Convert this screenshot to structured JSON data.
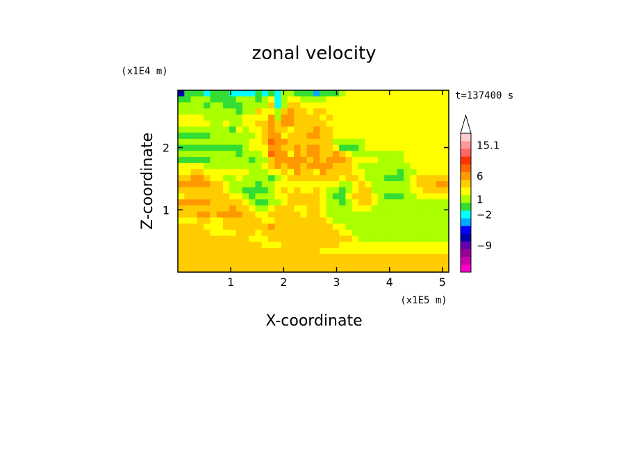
{
  "chart_data": {
    "type": "heatmap",
    "title": "zonal velocity",
    "xlabel": "X-coordinate",
    "ylabel": "Z-coordinate",
    "x_scale_label": "(x1E5 m)",
    "y_scale_label": "(x1E4 m)",
    "time_label": "t=137400 s",
    "x_ticks": [
      "1",
      "2",
      "3",
      "4",
      "5"
    ],
    "y_ticks": [
      "1",
      "2"
    ],
    "xlim": [
      0,
      5.12
    ],
    "ylim": [
      0,
      2.92
    ],
    "colorbar": {
      "tick_labels": [
        "15.1",
        "6",
        "1",
        "−2",
        "−9"
      ],
      "colors": [
        "#ff00cc",
        "#cc00aa",
        "#990099",
        "#6600aa",
        "#0000aa",
        "#0000ff",
        "#00aaff",
        "#00ffff",
        "#33dd33",
        "#aaff00",
        "#ffff00",
        "#ffcc00",
        "#ff9900",
        "#ff6600",
        "#ff3300",
        "#ff6666",
        "#ff9999",
        "#ffcccc"
      ]
    },
    "field": [
      [
        4,
        8,
        8,
        8,
        7,
        8,
        8,
        8,
        7,
        7,
        7,
        7,
        8,
        7,
        8,
        7,
        9,
        9,
        8,
        8,
        8,
        6,
        8,
        8,
        8,
        9,
        10,
        10,
        10,
        10,
        10,
        10,
        10,
        10,
        10,
        10,
        10,
        10,
        10,
        10,
        10,
        10
      ],
      [
        8,
        8,
        9,
        9,
        9,
        8,
        8,
        8,
        8,
        9,
        9,
        9,
        8,
        9,
        10,
        7,
        9,
        10,
        10,
        9,
        9,
        9,
        9,
        10,
        10,
        10,
        10,
        10,
        10,
        10,
        10,
        10,
        10,
        10,
        10,
        10,
        10,
        10,
        10,
        10,
        10,
        10
      ],
      [
        9,
        9,
        9,
        9,
        8,
        9,
        9,
        8,
        8,
        8,
        9,
        9,
        9,
        9,
        11,
        7,
        9,
        11,
        11,
        10,
        10,
        10,
        10,
        10,
        10,
        10,
        10,
        10,
        10,
        10,
        10,
        10,
        10,
        10,
        10,
        10,
        10,
        10,
        10,
        10,
        10,
        10
      ],
      [
        9,
        9,
        9,
        9,
        9,
        9,
        9,
        9,
        9,
        8,
        9,
        9,
        11,
        10,
        10,
        9,
        11,
        12,
        11,
        11,
        10,
        11,
        11,
        10,
        10,
        10,
        10,
        10,
        10,
        10,
        10,
        10,
        10,
        10,
        10,
        10,
        10,
        10,
        10,
        10,
        10,
        10
      ],
      [
        10,
        10,
        10,
        10,
        9,
        9,
        9,
        9,
        9,
        9,
        10,
        10,
        10,
        10,
        12,
        9,
        12,
        12,
        11,
        11,
        11,
        11,
        10,
        11,
        10,
        10,
        10,
        10,
        10,
        10,
        10,
        10,
        10,
        10,
        10,
        10,
        10,
        10,
        10,
        10,
        10,
        10
      ],
      [
        10,
        10,
        10,
        10,
        10,
        9,
        9,
        10,
        9,
        9,
        10,
        10,
        11,
        11,
        12,
        11,
        12,
        12,
        11,
        11,
        11,
        11,
        11,
        10,
        10,
        10,
        10,
        10,
        10,
        10,
        10,
        10,
        10,
        10,
        10,
        10,
        10,
        10,
        10,
        10,
        10,
        10
      ],
      [
        9,
        9,
        9,
        9,
        9,
        9,
        9,
        9,
        8,
        10,
        9,
        10,
        10,
        11,
        12,
        11,
        11,
        10,
        11,
        11,
        11,
        12,
        11,
        11,
        10,
        10,
        10,
        10,
        10,
        10,
        10,
        10,
        10,
        10,
        10,
        10,
        10,
        10,
        10,
        10,
        10,
        10
      ],
      [
        8,
        8,
        8,
        8,
        8,
        9,
        9,
        9,
        9,
        9,
        9,
        9,
        10,
        11,
        12,
        12,
        10,
        11,
        11,
        11,
        12,
        12,
        11,
        11,
        10,
        10,
        10,
        10,
        10,
        10,
        10,
        10,
        10,
        10,
        10,
        10,
        10,
        10,
        10,
        10,
        10,
        10
      ],
      [
        9,
        9,
        9,
        9,
        9,
        9,
        9,
        9,
        9,
        9,
        9,
        10,
        10,
        11,
        13,
        12,
        12,
        11,
        11,
        11,
        11,
        11,
        11,
        11,
        9,
        9,
        9,
        9,
        9,
        10,
        10,
        10,
        10,
        10,
        10,
        10,
        10,
        10,
        10,
        10,
        10,
        10
      ],
      [
        8,
        8,
        8,
        8,
        8,
        8,
        8,
        8,
        8,
        8,
        9,
        10,
        10,
        10,
        12,
        12,
        11,
        11,
        12,
        11,
        12,
        12,
        11,
        11,
        10,
        8,
        8,
        8,
        9,
        10,
        10,
        10,
        10,
        10,
        10,
        10,
        10,
        10,
        10,
        10,
        10,
        10
      ],
      [
        9,
        9,
        9,
        9,
        9,
        9,
        9,
        9,
        9,
        8,
        9,
        9,
        9,
        10,
        13,
        12,
        12,
        10,
        12,
        11,
        12,
        12,
        11,
        11,
        12,
        11,
        10,
        9,
        9,
        9,
        9,
        9,
        9,
        9,
        9,
        10,
        10,
        10,
        10,
        10,
        10,
        10
      ],
      [
        8,
        8,
        8,
        8,
        8,
        9,
        9,
        9,
        9,
        9,
        9,
        8,
        9,
        9,
        11,
        12,
        12,
        12,
        12,
        12,
        11,
        12,
        11,
        12,
        12,
        12,
        11,
        10,
        10,
        10,
        10,
        9,
        9,
        9,
        9,
        10,
        10,
        10,
        10,
        10,
        10,
        10
      ],
      [
        10,
        10,
        10,
        10,
        9,
        9,
        9,
        9,
        9,
        9,
        9,
        9,
        9,
        10,
        11,
        12,
        11,
        12,
        12,
        11,
        12,
        12,
        12,
        12,
        11,
        11,
        11,
        10,
        9,
        9,
        9,
        9,
        9,
        9,
        9,
        9,
        10,
        10,
        10,
        10,
        10,
        10
      ],
      [
        10,
        10,
        11,
        11,
        10,
        10,
        10,
        10,
        10,
        10,
        10,
        9,
        9,
        9,
        10,
        10,
        11,
        10,
        12,
        11,
        11,
        10,
        12,
        11,
        11,
        11,
        11,
        10,
        10,
        9,
        9,
        9,
        9,
        9,
        8,
        9,
        9,
        10,
        10,
        10,
        10,
        10
      ],
      [
        11,
        11,
        12,
        12,
        11,
        10,
        10,
        9,
        9,
        10,
        9,
        9,
        9,
        9,
        8,
        9,
        10,
        11,
        11,
        11,
        11,
        11,
        11,
        11,
        11,
        10,
        11,
        11,
        10,
        9,
        9,
        9,
        8,
        8,
        8,
        9,
        10,
        11,
        11,
        11,
        11,
        11
      ],
      [
        12,
        12,
        12,
        12,
        12,
        11,
        11,
        10,
        9,
        9,
        9,
        9,
        8,
        9,
        9,
        10,
        10,
        10,
        10,
        10,
        10,
        10,
        10,
        10,
        10,
        9,
        9,
        10,
        11,
        10,
        9,
        9,
        9,
        9,
        9,
        9,
        10,
        11,
        11,
        11,
        12,
        12
      ],
      [
        11,
        11,
        11,
        11,
        11,
        11,
        11,
        10,
        9,
        9,
        8,
        8,
        8,
        8,
        9,
        10,
        11,
        10,
        11,
        10,
        10,
        11,
        10,
        9,
        9,
        8,
        9,
        10,
        11,
        11,
        9,
        9,
        9,
        9,
        9,
        9,
        10,
        10,
        11,
        11,
        11,
        11
      ],
      [
        10,
        11,
        11,
        11,
        11,
        11,
        11,
        11,
        10,
        10,
        9,
        8,
        9,
        9,
        9,
        10,
        10,
        11,
        11,
        11,
        11,
        11,
        10,
        9,
        8,
        8,
        10,
        11,
        11,
        11,
        10,
        9,
        8,
        8,
        8,
        9,
        9,
        10,
        10,
        10,
        10,
        10
      ],
      [
        12,
        12,
        12,
        12,
        12,
        11,
        11,
        11,
        11,
        11,
        10,
        9,
        8,
        8,
        9,
        9,
        10,
        11,
        11,
        11,
        11,
        11,
        10,
        9,
        9,
        8,
        9,
        10,
        11,
        11,
        10,
        9,
        9,
        9,
        9,
        9,
        9,
        9,
        9,
        9,
        9,
        9
      ],
      [
        11,
        11,
        11,
        11,
        11,
        11,
        11,
        11,
        12,
        11,
        11,
        10,
        9,
        9,
        10,
        11,
        11,
        11,
        10,
        10,
        11,
        11,
        10,
        9,
        9,
        9,
        9,
        10,
        10,
        10,
        9,
        9,
        9,
        9,
        9,
        9,
        9,
        9,
        9,
        9,
        9,
        9
      ],
      [
        11,
        11,
        11,
        12,
        12,
        11,
        12,
        12,
        12,
        12,
        11,
        11,
        10,
        10,
        11,
        11,
        11,
        11,
        11,
        10,
        11,
        11,
        10,
        9,
        9,
        9,
        9,
        9,
        9,
        9,
        9,
        9,
        9,
        9,
        9,
        9,
        9,
        9,
        9,
        9,
        9,
        9
      ],
      [
        10,
        10,
        10,
        11,
        11,
        10,
        10,
        11,
        11,
        11,
        11,
        11,
        11,
        10,
        10,
        11,
        11,
        11,
        11,
        11,
        11,
        11,
        11,
        10,
        9,
        9,
        9,
        9,
        9,
        9,
        9,
        9,
        9,
        9,
        9,
        9,
        9,
        9,
        9,
        9,
        9,
        9
      ],
      [
        11,
        11,
        11,
        11,
        10,
        10,
        10,
        11,
        11,
        11,
        11,
        11,
        11,
        11,
        12,
        11,
        11,
        11,
        11,
        11,
        11,
        11,
        11,
        11,
        10,
        10,
        9,
        9,
        9,
        9,
        9,
        9,
        9,
        9,
        9,
        9,
        9,
        9,
        9,
        9,
        9,
        9
      ],
      [
        11,
        11,
        11,
        11,
        11,
        10,
        10,
        10,
        10,
        11,
        11,
        11,
        10,
        11,
        11,
        11,
        11,
        11,
        11,
        11,
        11,
        11,
        11,
        11,
        11,
        10,
        10,
        9,
        9,
        9,
        9,
        9,
        9,
        9,
        9,
        9,
        9,
        9,
        9,
        9,
        9,
        9
      ],
      [
        11,
        11,
        11,
        11,
        11,
        11,
        11,
        11,
        11,
        11,
        11,
        10,
        10,
        10,
        11,
        11,
        11,
        11,
        11,
        11,
        11,
        11,
        11,
        11,
        11,
        11,
        11,
        10,
        9,
        9,
        9,
        9,
        9,
        9,
        9,
        9,
        9,
        9,
        9,
        9,
        9,
        9
      ],
      [
        11,
        11,
        11,
        11,
        11,
        11,
        11,
        11,
        11,
        11,
        11,
        11,
        11,
        10,
        10,
        10,
        11,
        11,
        11,
        11,
        11,
        11,
        11,
        11,
        11,
        10,
        10,
        10,
        10,
        10,
        10,
        10,
        10,
        10,
        10,
        10,
        10,
        10,
        10,
        10,
        10,
        10
      ],
      [
        11,
        11,
        11,
        11,
        11,
        11,
        11,
        11,
        11,
        11,
        11,
        11,
        11,
        11,
        11,
        11,
        11,
        11,
        11,
        11,
        11,
        11,
        10,
        10,
        10,
        10,
        10,
        10,
        10,
        10,
        10,
        10,
        10,
        10,
        10,
        10,
        10,
        10,
        10,
        10,
        10,
        10
      ],
      [
        11,
        11,
        11,
        11,
        11,
        11,
        11,
        11,
        11,
        11,
        11,
        11,
        11,
        11,
        11,
        11,
        11,
        11,
        11,
        11,
        11,
        11,
        11,
        11,
        11,
        11,
        11,
        11,
        11,
        11,
        11,
        11,
        11,
        11,
        11,
        11,
        11,
        11,
        11,
        11,
        11,
        11
      ],
      [
        11,
        11,
        11,
        11,
        11,
        11,
        11,
        11,
        11,
        11,
        11,
        11,
        11,
        11,
        11,
        11,
        11,
        11,
        11,
        11,
        11,
        11,
        11,
        11,
        11,
        11,
        11,
        11,
        11,
        11,
        11,
        11,
        11,
        11,
        11,
        11,
        11,
        11,
        11,
        11,
        11,
        11
      ],
      [
        11,
        11,
        11,
        11,
        11,
        11,
        11,
        11,
        11,
        11,
        11,
        11,
        11,
        11,
        11,
        11,
        11,
        11,
        11,
        11,
        11,
        11,
        11,
        11,
        11,
        11,
        11,
        11,
        11,
        11,
        11,
        11,
        11,
        11,
        11,
        11,
        11,
        11,
        11,
        11,
        11,
        11
      ]
    ],
    "field_note_levels": "indices into colorbar.colors (0 = most negative, 17 = most positive)"
  }
}
